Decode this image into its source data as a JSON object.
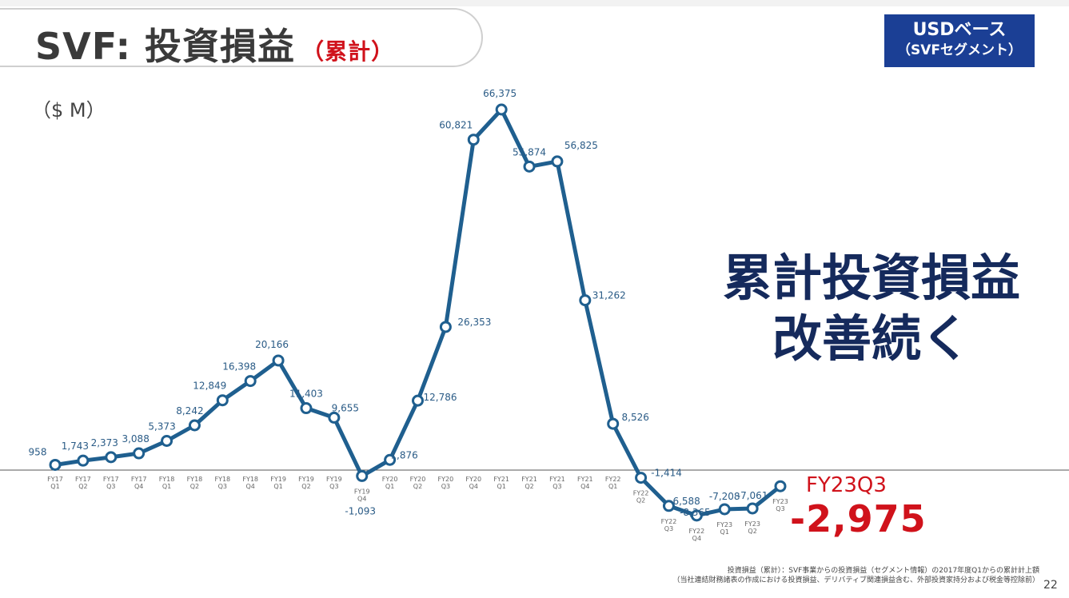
{
  "header": {
    "title": "SVF: 投資損益",
    "title_suffix": "（累計）",
    "badge_line1": "USDベース",
    "badge_line2": "（SVFセグメント）"
  },
  "unit_label": "（$ M）",
  "headline": {
    "line1": "累計投資損益",
    "line2": "改善続く"
  },
  "latest": {
    "label": "FY23Q3",
    "value": "-2,975"
  },
  "footnote": {
    "line1": "投資損益（累計）：SVF事業からの投資損益（セグメント情報）の2017年度Q1からの累計計上額",
    "line2": "（当社連結財務諸表の作成における投資損益、デリバティブ関連損益含む、外部投資家持分および税金等控除前）"
  },
  "page_number": "22",
  "colors": {
    "line": "#1f5f8f",
    "badge": "#1b3f95",
    "accent_red": "#d0121b",
    "headline": "#152a5c"
  },
  "chart_data": {
    "type": "line",
    "title": "SVF: 投資損益（累計）",
    "ylabel": "（$ M）",
    "x": [
      [
        "FY17",
        "Q1"
      ],
      [
        "FY17",
        "Q2"
      ],
      [
        "FY17",
        "Q3"
      ],
      [
        "FY17",
        "Q4"
      ],
      [
        "FY18",
        "Q1"
      ],
      [
        "FY18",
        "Q2"
      ],
      [
        "FY18",
        "Q3"
      ],
      [
        "FY18",
        "Q4"
      ],
      [
        "FY19",
        "Q1"
      ],
      [
        "FY19",
        "Q2"
      ],
      [
        "FY19",
        "Q3"
      ],
      [
        "FY19",
        "Q4"
      ],
      [
        "FY20",
        "Q1"
      ],
      [
        "FY20",
        "Q2"
      ],
      [
        "FY20",
        "Q3"
      ],
      [
        "FY20",
        "Q4"
      ],
      [
        "FY21",
        "Q1"
      ],
      [
        "FY21",
        "Q2"
      ],
      [
        "FY21",
        "Q3"
      ],
      [
        "FY21",
        "Q4"
      ],
      [
        "FY22",
        "Q1"
      ],
      [
        "FY22",
        "Q2"
      ],
      [
        "FY22",
        "Q3"
      ],
      [
        "FY22",
        "Q4"
      ],
      [
        "FY23",
        "Q1"
      ],
      [
        "FY23",
        "Q2"
      ],
      [
        "FY23",
        "Q3"
      ]
    ],
    "values": [
      958,
      1743,
      2373,
      3088,
      5373,
      8242,
      12849,
      16398,
      20166,
      11403,
      9655,
      -1093,
      1876,
      12786,
      26353,
      60821,
      66375,
      55874,
      56825,
      31262,
      8526,
      -1414,
      -6588,
      -8365,
      -7208,
      -7061,
      -2975
    ],
    "labels": [
      "958",
      "1,743",
      "2,373",
      "3,088",
      "5,373",
      "8,242",
      "12,849",
      "16,398",
      "20,166",
      "11,403",
      "9,655",
      "-1,093",
      "1,876",
      "12,786",
      "26,353",
      "60,821",
      "66,375",
      "55,874",
      "56,825",
      "31,262",
      "8,526",
      "-1,414",
      "-6,588",
      "-8,365",
      "-7,208",
      "-7,061",
      ""
    ],
    "ylim": [
      -8365,
      66375
    ],
    "grid": false,
    "legend": "none"
  }
}
